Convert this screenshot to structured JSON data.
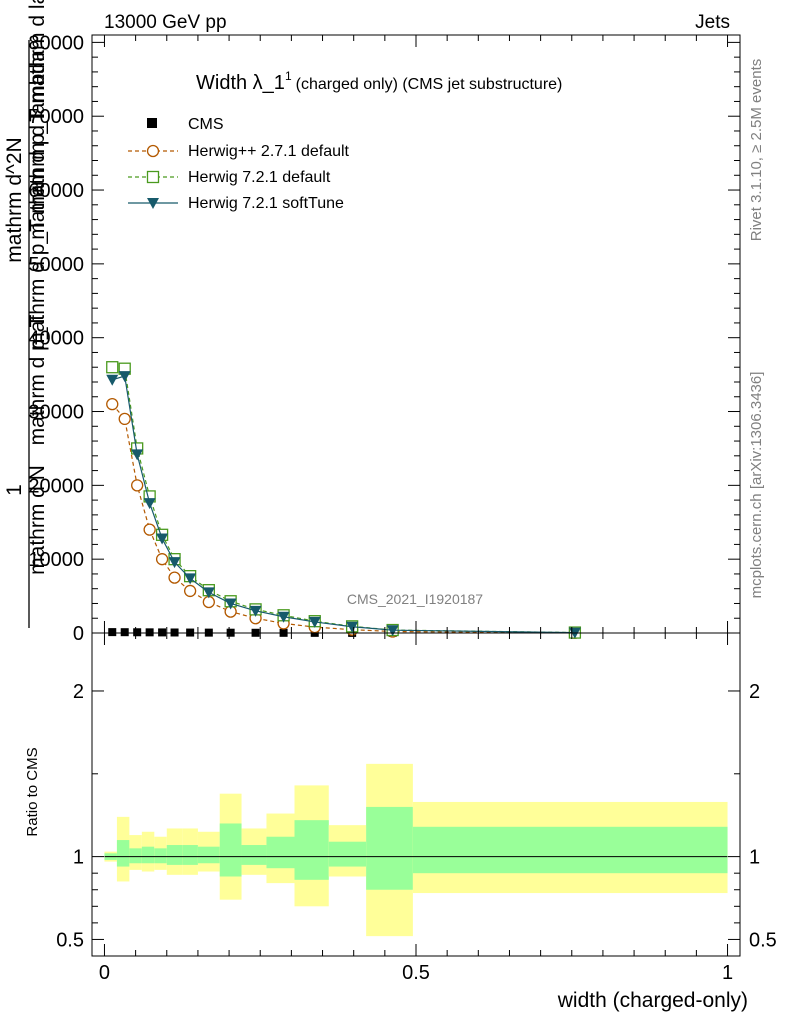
{
  "header": {
    "left": "13000 GeV pp",
    "right": "Jets"
  },
  "side_labels": {
    "top": "Rivet 3.1.10, ≥ 2.5M events",
    "bottom": "mcplots.cern.ch [arXiv:1306.3436]"
  },
  "watermark": "CMS_2021_I1920187",
  "colors": {
    "herwigpp": "#b35900",
    "herwig721": "#4a9a1e",
    "softtune": "#175a6b",
    "band_outer": "#ffff99",
    "band_inner": "#99ff99"
  },
  "chart_data": [
    {
      "type": "line",
      "title": {
        "main": "Width λ_1",
        "sup": "1",
        "rest": "(charged only) (CMS jet substructure)"
      },
      "ylabel": {
        "frac_num": "1",
        "frac_den": "mathrm d N",
        "line2": "mathrm d^2N",
        "line2b": "mathrm d p_T mathrm d lambda",
        "line3": "mathrm d p_T",
        "line3b": "mathrm d p_T mathrm d lambda"
      },
      "xlim": [
        -0.02,
        1.02
      ],
      "ylim": [
        0,
        81000
      ],
      "yticks": [
        0,
        10000,
        20000,
        30000,
        40000,
        50000,
        60000,
        70000,
        80000
      ],
      "ytick_labels": [
        "0",
        "10000",
        "20000",
        "30000",
        "40000",
        "50000",
        "60000",
        "70000",
        "80000"
      ],
      "grid": false,
      "legend_position": "top-left",
      "x": [
        0.0125,
        0.0325,
        0.0525,
        0.0725,
        0.0925,
        0.1125,
        0.1375,
        0.1675,
        0.2025,
        0.2425,
        0.2875,
        0.3375,
        0.3975,
        0.4625,
        0.755
      ],
      "series": [
        {
          "name": "CMS",
          "marker": "square-filled",
          "values": [
            120,
            110,
            100,
            90,
            80,
            70,
            60,
            50,
            40,
            30,
            25,
            20,
            15,
            10,
            5
          ]
        },
        {
          "name": "Herwig++ 2.7.1 default",
          "marker": "circle-open",
          "dash": "dashed",
          "values": [
            31000,
            29000,
            20000,
            14000,
            10000,
            7500,
            5700,
            4200,
            2900,
            2000,
            1300,
            800,
            450,
            200,
            30
          ]
        },
        {
          "name": "Herwig 7.2.1 default",
          "marker": "square-open",
          "dash": "dashed",
          "values": [
            36000,
            35800,
            25000,
            18500,
            13300,
            10000,
            7700,
            5800,
            4300,
            3200,
            2400,
            1600,
            900,
            400,
            60
          ]
        },
        {
          "name": "Herwig 7.2.1 softTune",
          "marker": "triangle-down",
          "dash": "solid",
          "values": [
            34300,
            34800,
            24200,
            17600,
            12800,
            9600,
            7400,
            5500,
            4000,
            3000,
            2200,
            1500,
            850,
            380,
            55
          ]
        }
      ]
    },
    {
      "type": "area",
      "ylabel": "Ratio to CMS",
      "xlabel": "width (charged-only)",
      "xlim": [
        -0.02,
        1.02
      ],
      "ylim": [
        0.4,
        2.35
      ],
      "yticks": [
        0.5,
        1,
        2
      ],
      "ytick_labels": [
        "0.5",
        "1",
        "2"
      ],
      "xticks": [
        0,
        0.5,
        1
      ],
      "xtick_labels": [
        "0",
        "0.5",
        "1"
      ],
      "bins": [
        {
          "lo": 0.0,
          "hi": 0.02,
          "outer": [
            0.97,
            1.03
          ],
          "inner": [
            0.98,
            1.02
          ]
        },
        {
          "lo": 0.02,
          "hi": 0.04,
          "outer": [
            0.85,
            1.24
          ],
          "inner": [
            0.94,
            1.1
          ]
        },
        {
          "lo": 0.04,
          "hi": 0.06,
          "outer": [
            0.92,
            1.13
          ],
          "inner": [
            0.96,
            1.05
          ]
        },
        {
          "lo": 0.06,
          "hi": 0.08,
          "outer": [
            0.91,
            1.15
          ],
          "inner": [
            0.96,
            1.06
          ]
        },
        {
          "lo": 0.08,
          "hi": 0.1,
          "outer": [
            0.92,
            1.12
          ],
          "inner": [
            0.96,
            1.05
          ]
        },
        {
          "lo": 0.1,
          "hi": 0.125,
          "outer": [
            0.89,
            1.17
          ],
          "inner": [
            0.95,
            1.07
          ]
        },
        {
          "lo": 0.125,
          "hi": 0.15,
          "outer": [
            0.89,
            1.17
          ],
          "inner": [
            0.95,
            1.07
          ]
        },
        {
          "lo": 0.15,
          "hi": 0.185,
          "outer": [
            0.91,
            1.15
          ],
          "inner": [
            0.96,
            1.06
          ]
        },
        {
          "lo": 0.185,
          "hi": 0.22,
          "outer": [
            0.74,
            1.38
          ],
          "inner": [
            0.88,
            1.2
          ]
        },
        {
          "lo": 0.22,
          "hi": 0.26,
          "outer": [
            0.89,
            1.17
          ],
          "inner": [
            0.95,
            1.07
          ]
        },
        {
          "lo": 0.26,
          "hi": 0.305,
          "outer": [
            0.84,
            1.26
          ],
          "inner": [
            0.93,
            1.12
          ]
        },
        {
          "lo": 0.305,
          "hi": 0.36,
          "outer": [
            0.7,
            1.43
          ],
          "inner": [
            0.86,
            1.22
          ]
        },
        {
          "lo": 0.36,
          "hi": 0.42,
          "outer": [
            0.88,
            1.19
          ],
          "inner": [
            0.94,
            1.09
          ]
        },
        {
          "lo": 0.42,
          "hi": 0.495,
          "outer": [
            0.52,
            1.56
          ],
          "inner": [
            0.8,
            1.3
          ]
        },
        {
          "lo": 0.495,
          "hi": 1.0,
          "outer": [
            0.78,
            1.33
          ],
          "inner": [
            0.9,
            1.18
          ]
        }
      ]
    }
  ]
}
